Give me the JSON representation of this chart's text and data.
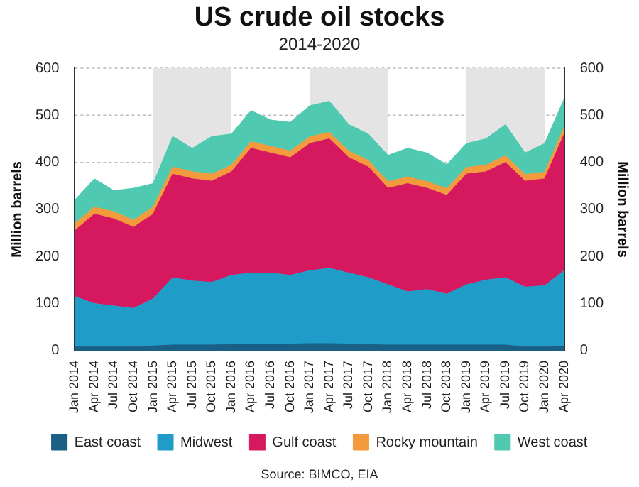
{
  "chart_data": {
    "type": "area",
    "title": "US crude oil stocks",
    "subtitle": "2014-2020",
    "ylabel": "Million barrels",
    "y2label": "Million barrels",
    "stacked": true,
    "grid": "y",
    "legend": "bottom",
    "marker": "none",
    "categories": [
      "Jan 2014",
      "Apr 2014",
      "Jul 2014",
      "Oct 2014",
      "Jan 2015",
      "Apr 2015",
      "Jul 2015",
      "Oct 2015",
      "Jan 2016",
      "Apr 2016",
      "Jul 2016",
      "Oct 2016",
      "Jan 2017",
      "Apr 2017",
      "Jul 2017",
      "Oct 2017",
      "Jan 2018",
      "Apr 2018",
      "Jul 2018",
      "Oct 2018",
      "Jan 2019",
      "Apr 2019",
      "Jul 2019",
      "Oct 2019",
      "Jan 2020",
      "Apr 2020"
    ],
    "series": [
      {
        "name": "East coast",
        "color": "#1a5f86",
        "values": [
          8,
          8,
          8,
          8,
          10,
          12,
          12,
          12,
          14,
          14,
          14,
          14,
          15,
          15,
          14,
          13,
          12,
          12,
          12,
          12,
          12,
          12,
          12,
          8,
          8,
          10
        ]
      },
      {
        "name": "Midwest",
        "color": "#1f9cc8",
        "values": [
          107,
          92,
          87,
          82,
          100,
          143,
          136,
          133,
          146,
          151,
          151,
          146,
          155,
          160,
          151,
          142,
          128,
          113,
          118,
          108,
          128,
          138,
          143,
          127,
          130,
          160
        ]
      },
      {
        "name": "Gulf coast",
        "color": "#d6185f",
        "values": [
          140,
          190,
          185,
          172,
          180,
          220,
          217,
          215,
          220,
          265,
          255,
          250,
          270,
          275,
          245,
          235,
          205,
          230,
          215,
          210,
          235,
          230,
          245,
          225,
          227,
          290
        ]
      },
      {
        "name": "Rocky mountain",
        "color": "#f39a3c",
        "values": [
          15,
          15,
          15,
          15,
          15,
          15,
          15,
          15,
          14,
          14,
          14,
          14,
          14,
          14,
          14,
          14,
          14,
          14,
          14,
          14,
          14,
          14,
          14,
          14,
          14,
          14
        ]
      },
      {
        "name": "West coast",
        "color": "#4fc9b0",
        "values": [
          50,
          60,
          45,
          68,
          50,
          65,
          50,
          80,
          66,
          66,
          56,
          61,
          66,
          66,
          56,
          56,
          56,
          61,
          61,
          51,
          51,
          56,
          66,
          46,
          61,
          61
        ]
      }
    ],
    "ylim": [
      0,
      600
    ],
    "yticks": [
      0,
      100,
      200,
      300,
      400,
      500,
      600
    ],
    "y2lim": [
      0,
      600
    ],
    "y2ticks": [
      0,
      100,
      200,
      300,
      400,
      500,
      600
    ],
    "bands": [
      {
        "axis": "x",
        "from": "Jan 2015",
        "to": "Jan 2016",
        "color": "#e4e4e4"
      },
      {
        "axis": "x",
        "from": "Jan 2017",
        "to": "Jan 2018",
        "color": "#e4e4e4"
      },
      {
        "axis": "x",
        "from": "Jan 2019",
        "to": "Jan 2020",
        "color": "#e4e4e4"
      }
    ],
    "annotations": [
      "Source: BIMCO, EIA"
    ]
  }
}
